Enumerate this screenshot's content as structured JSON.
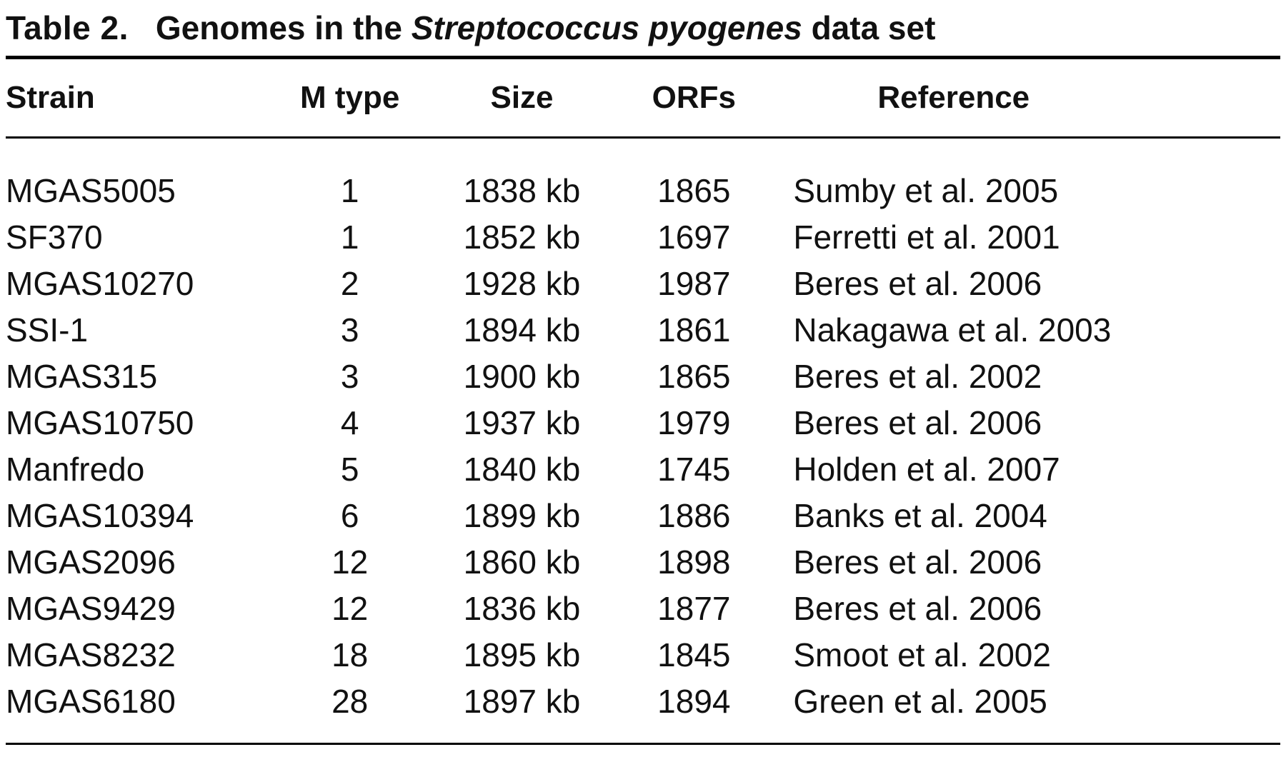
{
  "title": {
    "label": "Table 2.",
    "text_before_italic": "Genomes in the",
    "italic": "Streptococcus pyogenes",
    "text_after_italic": "data set"
  },
  "table": {
    "columns": [
      "Strain",
      "M type",
      "Size",
      "ORFs",
      "Reference"
    ],
    "rows": [
      [
        "MGAS5005",
        "1",
        "1838 kb",
        "1865",
        "Sumby et al. 2005"
      ],
      [
        "SF370",
        "1",
        "1852 kb",
        "1697",
        "Ferretti et al. 2001"
      ],
      [
        "MGAS10270",
        "2",
        "1928 kb",
        "1987",
        "Beres et al. 2006"
      ],
      [
        "SSI-1",
        "3",
        "1894 kb",
        "1861",
        "Nakagawa et al. 2003"
      ],
      [
        "MGAS315",
        "3",
        "1900 kb",
        "1865",
        "Beres et al. 2002"
      ],
      [
        "MGAS10750",
        "4",
        "1937 kb",
        "1979",
        "Beres et al. 2006"
      ],
      [
        "Manfredo",
        "5",
        "1840 kb",
        "1745",
        "Holden et al. 2007"
      ],
      [
        "MGAS10394",
        "6",
        "1899 kb",
        "1886",
        "Banks et al. 2004"
      ],
      [
        "MGAS2096",
        "12",
        "1860 kb",
        "1898",
        "Beres et al. 2006"
      ],
      [
        "MGAS9429",
        "12",
        "1836 kb",
        "1877",
        "Beres et al. 2006"
      ],
      [
        "MGAS8232",
        "18",
        "1895 kb",
        "1845",
        "Smoot et al. 2002"
      ],
      [
        "MGAS6180",
        "28",
        "1897 kb",
        "1894",
        "Green et al. 2005"
      ]
    ]
  },
  "colors": {
    "text": "#111111",
    "background": "#ffffff",
    "rule": "#000000"
  }
}
